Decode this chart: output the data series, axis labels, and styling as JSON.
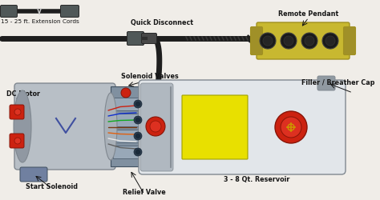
{
  "bg_color": "#f0ede8",
  "labels": {
    "extension_cords": "15 - 25 ft. Extension Cords",
    "quick_disconnect": "Quick Disconnect",
    "remote_pendant": "Remote Pendant",
    "dc_motor": "DC Motor",
    "solenoid_valves": "Solenoid Valves",
    "filler_breather": "Filler / Breather Cap",
    "start_solenoid": "Start Solenoid",
    "relief_valve": "Relief Valve",
    "reservoir": "3 - 8 Qt. Reservoir"
  },
  "colors": {
    "motor_body": "#b8bfc6",
    "motor_dark": "#808890",
    "motor_end": "#9098a2",
    "res_body": "#d0d5da",
    "res_light": "#e2e6ea",
    "res_side": "#b0b8c0",
    "pendant_gold": "#c8b830",
    "pendant_dark": "#a09020",
    "cable_black": "#1e1e1e",
    "cable_gray": "#555555",
    "sol_block": "#8090a0",
    "sol_light": "#b0bcc8",
    "sol_face": "#98a8b8",
    "red_btn": "#cc2210",
    "red_dark": "#881508",
    "yellow_lbl": "#e8e000",
    "wire_blue": "#1030d0",
    "wire_green": "#10a820",
    "wire_red": "#cc2010",
    "wire_brown": "#7a3a10",
    "wire_orange": "#e06010",
    "wire_white": "#e8e8e8",
    "text_dark": "#151515",
    "conn_gray": "#505858",
    "conn_dark": "#282828",
    "filler_cap": "#909aa2"
  },
  "font_size": 5.8
}
